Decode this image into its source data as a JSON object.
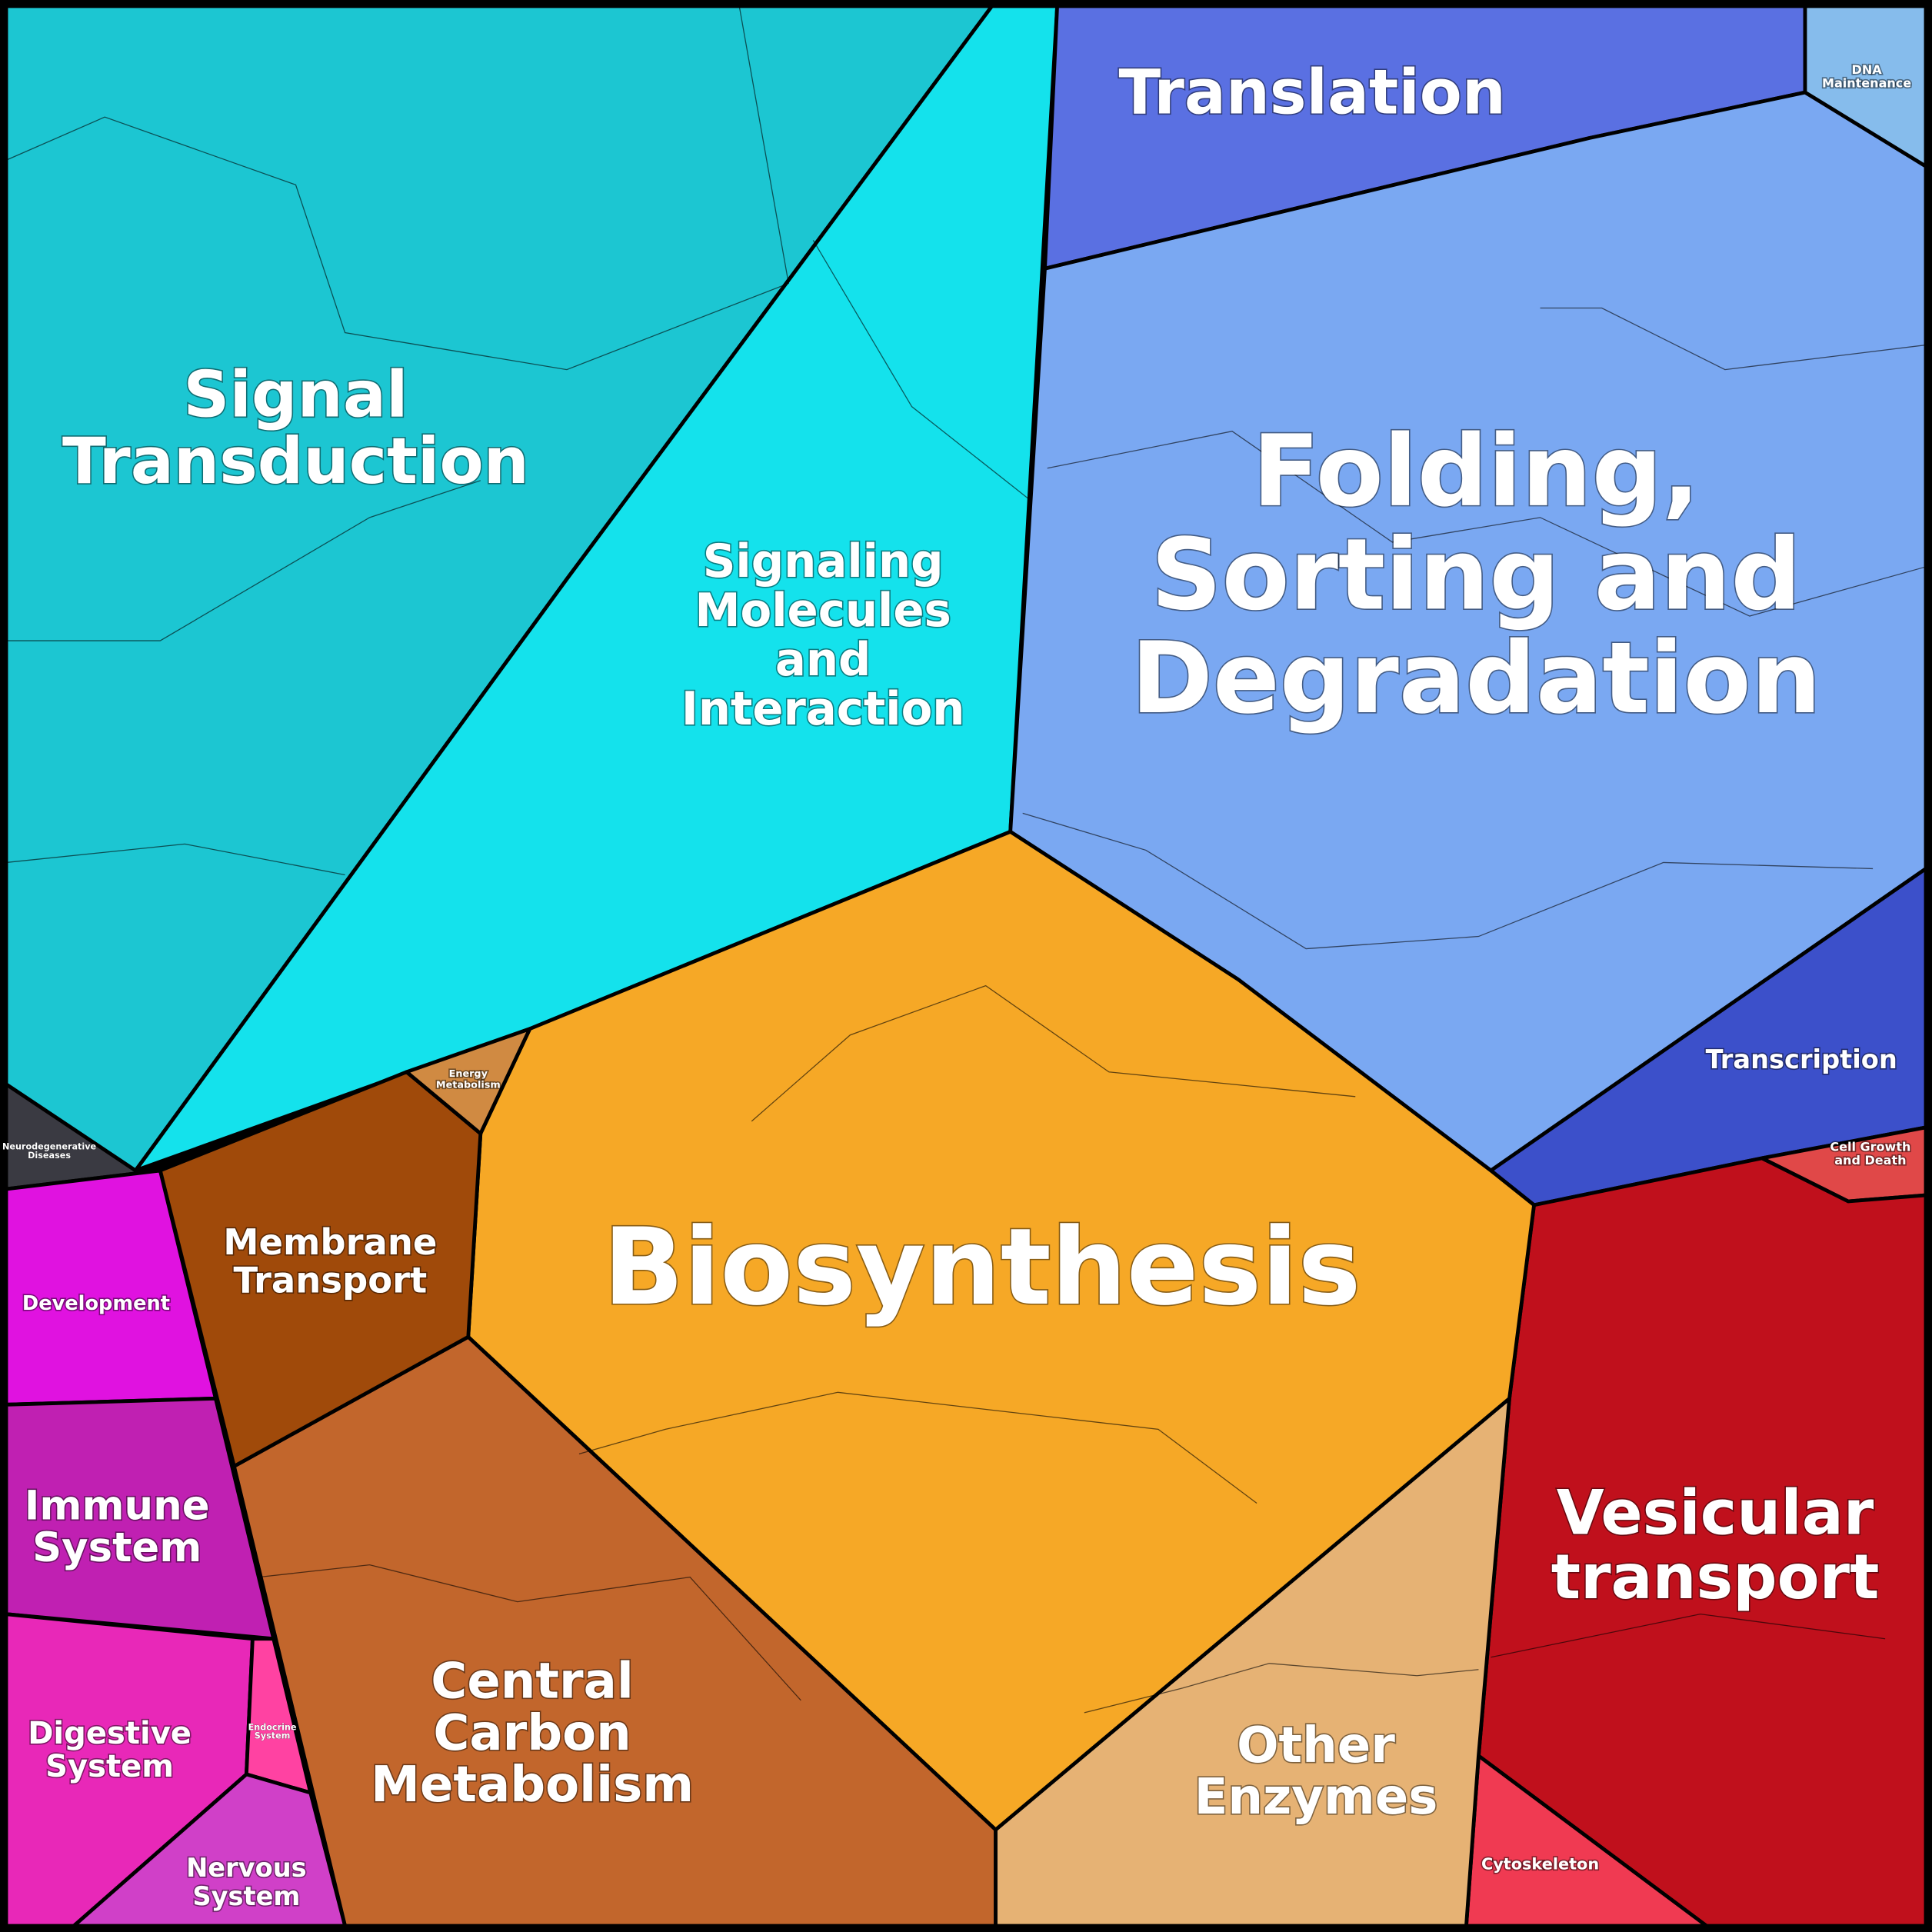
{
  "regions": [
    {
      "label": [
        "Signal",
        "Transduction"
      ]
    },
    {
      "label": [
        "Signaling",
        "Molecules",
        "and",
        "Interaction"
      ]
    },
    {
      "label": [
        "Translation"
      ]
    },
    {
      "label": [
        "DNA",
        "Maintenance"
      ]
    },
    {
      "label": [
        "Folding,",
        "Sorting and",
        "Degradation"
      ]
    },
    {
      "label": [
        "Transcription"
      ]
    },
    {
      "label": [
        "Cell Growth",
        "and Death"
      ]
    },
    {
      "label": [
        "Vesicular",
        "transport"
      ]
    },
    {
      "label": [
        "Cytoskeleton"
      ]
    },
    {
      "label": [
        "Other",
        "Enzymes"
      ]
    },
    {
      "label": [
        "Biosynthesis"
      ]
    },
    {
      "label": [
        "Central",
        "Carbon",
        "Metabolism"
      ]
    },
    {
      "label": [
        "Membrane",
        "Transport"
      ]
    },
    {
      "label": [
        "Energy",
        "Metabolism"
      ]
    },
    {
      "label": [
        "Neurodegenerative",
        "Diseases"
      ]
    },
    {
      "label": [
        "Development"
      ]
    },
    {
      "label": [
        "Immune",
        "System"
      ]
    },
    {
      "label": [
        "Digestive",
        "System"
      ]
    },
    {
      "label": [
        "Endocrine",
        "System"
      ]
    },
    {
      "label": [
        "Nervous",
        "System"
      ]
    }
  ]
}
